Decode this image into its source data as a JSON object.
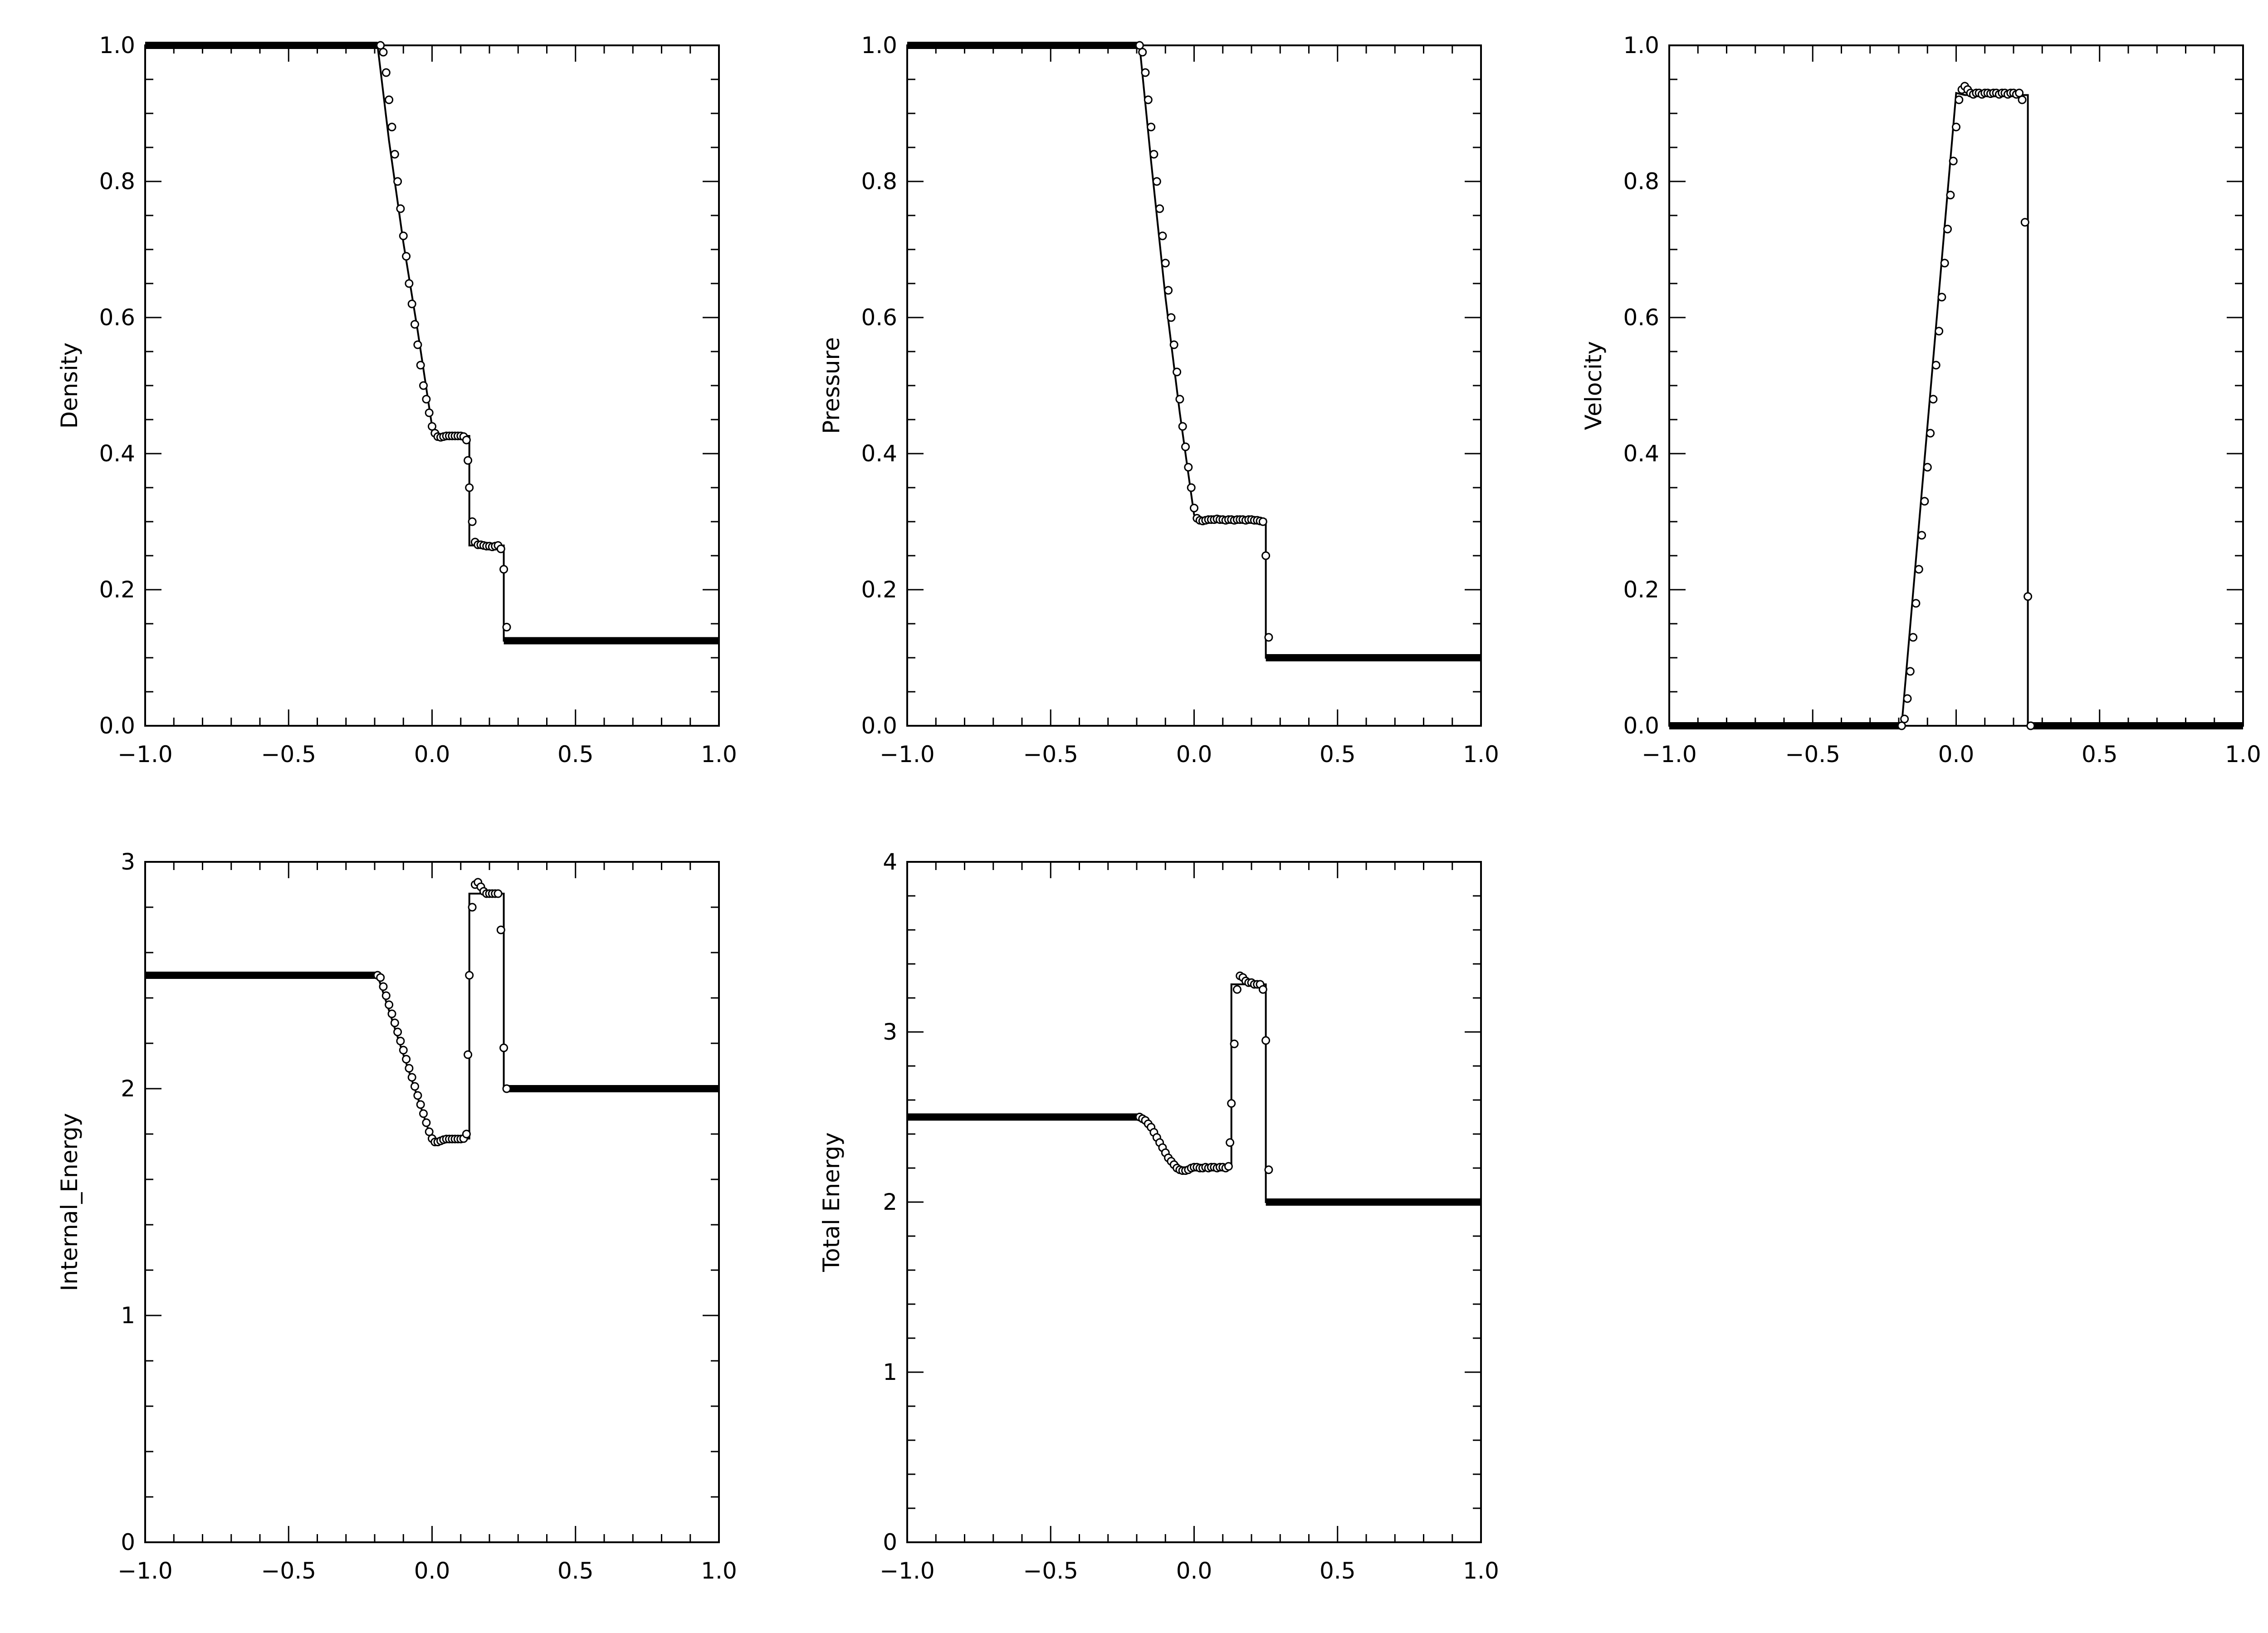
{
  "chart_data": [
    {
      "type": "line",
      "ylabel": "Density",
      "xlim": [
        -1.0,
        1.0
      ],
      "ylim": [
        0.0,
        1.0
      ],
      "x_ticks": [
        "−1.0",
        "−0.5",
        "0.0",
        "0.5",
        "1.0"
      ],
      "y_ticks": [
        "0.0",
        "0.2",
        "0.4",
        "0.6",
        "0.8",
        "1.0"
      ],
      "y_tick_values": [
        0.0,
        0.2,
        0.4,
        0.6,
        0.8,
        1.0
      ],
      "exact": {
        "x": [
          -1.0,
          -0.19,
          -0.15,
          -0.1,
          -0.05,
          0.0,
          0.03,
          0.13,
          0.13,
          0.25,
          0.25,
          1.0
        ],
        "y": [
          1.0,
          1.0,
          0.86,
          0.71,
          0.58,
          0.44,
          0.426,
          0.426,
          0.265,
          0.265,
          0.125,
          0.125
        ]
      },
      "numeric": {
        "x": [
          -0.18,
          -0.17,
          -0.16,
          -0.15,
          -0.14,
          -0.13,
          -0.12,
          -0.11,
          -0.1,
          -0.09,
          -0.08,
          -0.07,
          -0.06,
          -0.05,
          -0.04,
          -0.03,
          -0.02,
          -0.01,
          0.0,
          0.01,
          0.02,
          0.03,
          0.04,
          0.05,
          0.06,
          0.07,
          0.08,
          0.09,
          0.1,
          0.11,
          0.12,
          0.125,
          0.13,
          0.14,
          0.15,
          0.16,
          0.17,
          0.18,
          0.19,
          0.2,
          0.21,
          0.22,
          0.23,
          0.24,
          0.25,
          0.26
        ],
        "y": [
          1.0,
          0.99,
          0.96,
          0.92,
          0.88,
          0.84,
          0.8,
          0.76,
          0.72,
          0.69,
          0.65,
          0.62,
          0.59,
          0.56,
          0.53,
          0.5,
          0.48,
          0.46,
          0.44,
          0.43,
          0.425,
          0.424,
          0.425,
          0.426,
          0.426,
          0.426,
          0.426,
          0.426,
          0.426,
          0.425,
          0.42,
          0.39,
          0.35,
          0.3,
          0.27,
          0.266,
          0.266,
          0.265,
          0.264,
          0.264,
          0.263,
          0.264,
          0.265,
          0.26,
          0.23,
          0.145
        ]
      }
    },
    {
      "type": "line",
      "ylabel": "Pressure",
      "xlim": [
        -1.0,
        1.0
      ],
      "ylim": [
        0.0,
        1.0
      ],
      "x_ticks": [
        "−1.0",
        "−0.5",
        "0.0",
        "0.5",
        "1.0"
      ],
      "y_ticks": [
        "0.0",
        "0.2",
        "0.4",
        "0.6",
        "0.8",
        "1.0"
      ],
      "y_tick_values": [
        0.0,
        0.2,
        0.4,
        0.6,
        0.8,
        1.0
      ],
      "exact": {
        "x": [
          -1.0,
          -0.19,
          -0.15,
          -0.1,
          -0.05,
          0.0,
          0.03,
          0.25,
          0.25,
          1.0
        ],
        "y": [
          1.0,
          1.0,
          0.83,
          0.63,
          0.46,
          0.31,
          0.303,
          0.303,
          0.1,
          0.1
        ]
      },
      "numeric": {
        "x": [
          -0.19,
          -0.18,
          -0.17,
          -0.16,
          -0.15,
          -0.14,
          -0.13,
          -0.12,
          -0.11,
          -0.1,
          -0.09,
          -0.08,
          -0.07,
          -0.06,
          -0.05,
          -0.04,
          -0.03,
          -0.02,
          -0.01,
          0.0,
          0.01,
          0.02,
          0.03,
          0.04,
          0.05,
          0.06,
          0.07,
          0.08,
          0.09,
          0.1,
          0.11,
          0.12,
          0.13,
          0.14,
          0.15,
          0.16,
          0.17,
          0.18,
          0.19,
          0.2,
          0.21,
          0.22,
          0.23,
          0.24,
          0.25,
          0.26
        ],
        "y": [
          1.0,
          0.99,
          0.96,
          0.92,
          0.88,
          0.84,
          0.8,
          0.76,
          0.72,
          0.68,
          0.64,
          0.6,
          0.56,
          0.52,
          0.48,
          0.44,
          0.41,
          0.38,
          0.35,
          0.32,
          0.305,
          0.302,
          0.301,
          0.302,
          0.303,
          0.303,
          0.303,
          0.304,
          0.303,
          0.303,
          0.302,
          0.303,
          0.303,
          0.302,
          0.303,
          0.303,
          0.303,
          0.302,
          0.303,
          0.303,
          0.302,
          0.302,
          0.301,
          0.3,
          0.25,
          0.13
        ]
      }
    },
    {
      "type": "line",
      "ylabel": "Velocity",
      "xlim": [
        -1.0,
        1.0
      ],
      "ylim": [
        0.0,
        1.0
      ],
      "x_ticks": [
        "−1.0",
        "−0.5",
        "0.0",
        "0.5",
        "1.0"
      ],
      "y_ticks": [
        "0.0",
        "0.2",
        "0.4",
        "0.6",
        "0.8",
        "1.0"
      ],
      "y_tick_values": [
        0.0,
        0.2,
        0.4,
        0.6,
        0.8,
        1.0
      ],
      "exact": {
        "x": [
          -1.0,
          -0.19,
          0.0,
          0.03,
          0.25,
          0.25,
          1.0
        ],
        "y": [
          0.0,
          0.0,
          0.93,
          0.927,
          0.927,
          0.0,
          0.0
        ]
      },
      "numeric": {
        "x": [
          -0.19,
          -0.18,
          -0.17,
          -0.16,
          -0.15,
          -0.14,
          -0.13,
          -0.12,
          -0.11,
          -0.1,
          -0.09,
          -0.08,
          -0.07,
          -0.06,
          -0.05,
          -0.04,
          -0.03,
          -0.02,
          -0.01,
          0.0,
          0.01,
          0.02,
          0.03,
          0.04,
          0.05,
          0.06,
          0.07,
          0.08,
          0.09,
          0.1,
          0.11,
          0.12,
          0.13,
          0.14,
          0.15,
          0.16,
          0.17,
          0.18,
          0.19,
          0.2,
          0.21,
          0.22,
          0.23,
          0.24,
          0.25,
          0.26
        ],
        "y": [
          0.0,
          0.01,
          0.04,
          0.08,
          0.13,
          0.18,
          0.23,
          0.28,
          0.33,
          0.38,
          0.43,
          0.48,
          0.53,
          0.58,
          0.63,
          0.68,
          0.73,
          0.78,
          0.83,
          0.88,
          0.92,
          0.935,
          0.94,
          0.935,
          0.93,
          0.928,
          0.93,
          0.93,
          0.928,
          0.93,
          0.93,
          0.929,
          0.93,
          0.93,
          0.928,
          0.93,
          0.93,
          0.928,
          0.93,
          0.93,
          0.928,
          0.93,
          0.92,
          0.74,
          0.19,
          0.0
        ]
      }
    },
    {
      "type": "line",
      "ylabel": "Internal_Energy",
      "xlim": [
        -1.0,
        1.0
      ],
      "ylim": [
        0.0,
        3.0
      ],
      "x_ticks": [
        "−1.0",
        "−0.5",
        "0.0",
        "0.5",
        "1.0"
      ],
      "y_ticks": [
        "0",
        "1",
        "2",
        "3"
      ],
      "y_tick_values": [
        0,
        1,
        2,
        3
      ],
      "exact": {
        "x": [
          -1.0,
          -0.19,
          -0.1,
          0.0,
          0.03,
          0.13,
          0.13,
          0.25,
          0.25,
          1.0
        ],
        "y": [
          2.5,
          2.5,
          2.15,
          1.77,
          1.78,
          1.78,
          2.86,
          2.86,
          2.0,
          2.0
        ]
      },
      "numeric": {
        "x": [
          -0.19,
          -0.18,
          -0.17,
          -0.16,
          -0.15,
          -0.14,
          -0.13,
          -0.12,
          -0.11,
          -0.1,
          -0.09,
          -0.08,
          -0.07,
          -0.06,
          -0.05,
          -0.04,
          -0.03,
          -0.02,
          -0.01,
          0.0,
          0.01,
          0.02,
          0.03,
          0.04,
          0.05,
          0.06,
          0.07,
          0.08,
          0.09,
          0.1,
          0.11,
          0.12,
          0.125,
          0.13,
          0.14,
          0.15,
          0.16,
          0.17,
          0.18,
          0.19,
          0.2,
          0.21,
          0.22,
          0.23,
          0.24,
          0.25,
          0.26
        ],
        "y": [
          2.5,
          2.49,
          2.45,
          2.41,
          2.37,
          2.33,
          2.29,
          2.25,
          2.21,
          2.17,
          2.13,
          2.09,
          2.05,
          2.01,
          1.97,
          1.93,
          1.89,
          1.85,
          1.81,
          1.78,
          1.765,
          1.765,
          1.77,
          1.775,
          1.778,
          1.778,
          1.778,
          1.778,
          1.778,
          1.778,
          1.78,
          1.8,
          2.15,
          2.5,
          2.8,
          2.9,
          2.91,
          2.89,
          2.87,
          2.86,
          2.86,
          2.86,
          2.86,
          2.86,
          2.7,
          2.18,
          2.0
        ]
      }
    },
    {
      "type": "line",
      "ylabel": "Total Energy",
      "xlim": [
        -1.0,
        1.0
      ],
      "ylim": [
        0.0,
        4.0
      ],
      "x_ticks": [
        "−1.0",
        "−0.5",
        "0.0",
        "0.5",
        "1.0"
      ],
      "y_ticks": [
        "0",
        "1",
        "2",
        "3",
        "4"
      ],
      "y_tick_values": [
        0,
        1,
        2,
        3,
        4
      ],
      "exact": {
        "x": [
          -1.0,
          -0.19,
          -0.15,
          -0.1,
          -0.05,
          -0.03,
          0.0,
          0.03,
          0.13,
          0.13,
          0.25,
          0.25,
          1.0
        ],
        "y": [
          2.5,
          2.5,
          2.44,
          2.3,
          2.21,
          2.19,
          2.2,
          2.21,
          2.21,
          3.28,
          3.28,
          2.0,
          2.0
        ]
      },
      "numeric": {
        "x": [
          -0.19,
          -0.18,
          -0.17,
          -0.16,
          -0.15,
          -0.14,
          -0.13,
          -0.12,
          -0.11,
          -0.1,
          -0.09,
          -0.08,
          -0.07,
          -0.06,
          -0.05,
          -0.04,
          -0.03,
          -0.02,
          -0.01,
          0.0,
          0.01,
          0.02,
          0.03,
          0.04,
          0.05,
          0.06,
          0.07,
          0.08,
          0.09,
          0.1,
          0.11,
          0.12,
          0.125,
          0.13,
          0.14,
          0.15,
          0.16,
          0.17,
          0.18,
          0.19,
          0.2,
          0.21,
          0.22,
          0.23,
          0.24,
          0.25,
          0.26
        ],
        "y": [
          2.5,
          2.49,
          2.48,
          2.46,
          2.44,
          2.41,
          2.38,
          2.35,
          2.32,
          2.29,
          2.26,
          2.24,
          2.22,
          2.2,
          2.19,
          2.185,
          2.185,
          2.19,
          2.2,
          2.205,
          2.205,
          2.2,
          2.2,
          2.205,
          2.2,
          2.205,
          2.205,
          2.2,
          2.205,
          2.205,
          2.2,
          2.21,
          2.35,
          2.58,
          2.93,
          3.25,
          3.33,
          3.32,
          3.3,
          3.29,
          3.29,
          3.28,
          3.28,
          3.28,
          3.25,
          2.95,
          2.19
        ]
      }
    }
  ]
}
